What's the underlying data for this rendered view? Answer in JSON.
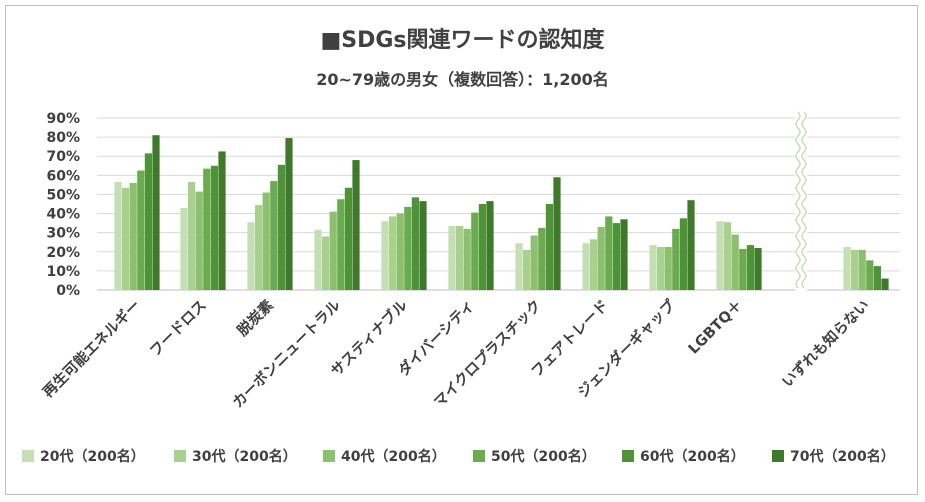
{
  "chart_data": {
    "type": "bar",
    "title": "■SDGs関連ワードの認知度",
    "subtitle": "20~79歳の男女（複数回答）：1,200名",
    "xlabel": "",
    "ylabel": "",
    "ylim": [
      0,
      90
    ],
    "y_ticks": [
      "0%",
      "10%",
      "20%",
      "30%",
      "40%",
      "50%",
      "60%",
      "70%",
      "80%",
      "90%"
    ],
    "grid": true,
    "legend_position": "bottom",
    "axis_break_before": "いずれも知らない",
    "categories": [
      "再生可能エネルギー",
      "フードロス",
      "脱炭素",
      "カーボンニュートラル",
      "サスティナブル",
      "ダイバーシティ",
      "マイクロプラスチック",
      "フェアトレード",
      "ジェンダーギャップ",
      "LGBTQ＋",
      "いずれも知らない"
    ],
    "series": [
      {
        "name": "20代（200名）",
        "color": "#c5dfb4",
        "values": [
          56.5,
          43,
          35.5,
          31.5,
          36,
          33.5,
          24.5,
          24.5,
          23.5,
          36,
          22.5
        ]
      },
      {
        "name": "30代（200名）",
        "color": "#a9d18e",
        "values": [
          53.5,
          56.5,
          44.5,
          28,
          38.5,
          33.5,
          21,
          26.5,
          22.5,
          35.5,
          21
        ]
      },
      {
        "name": "40代（200名）",
        "color": "#8cc06e",
        "values": [
          56,
          51.5,
          51,
          41,
          40,
          32,
          28.5,
          33,
          22.5,
          29,
          21
        ]
      },
      {
        "name": "50代（200名）",
        "color": "#6aab4f",
        "values": [
          62.5,
          63.5,
          57,
          47.5,
          43.5,
          40.5,
          32.5,
          38.5,
          32,
          21.5,
          15.5
        ]
      },
      {
        "name": "60代（200名）",
        "color": "#4f9338",
        "values": [
          71.5,
          65,
          65.5,
          53.5,
          48.5,
          45,
          45,
          35,
          37.5,
          23.5,
          12.5
        ]
      },
      {
        "name": "70代（200名）",
        "color": "#3f7a2b",
        "values": [
          81,
          72.5,
          79.5,
          68,
          46.5,
          46.5,
          59,
          37,
          47,
          22,
          6
        ]
      }
    ]
  }
}
